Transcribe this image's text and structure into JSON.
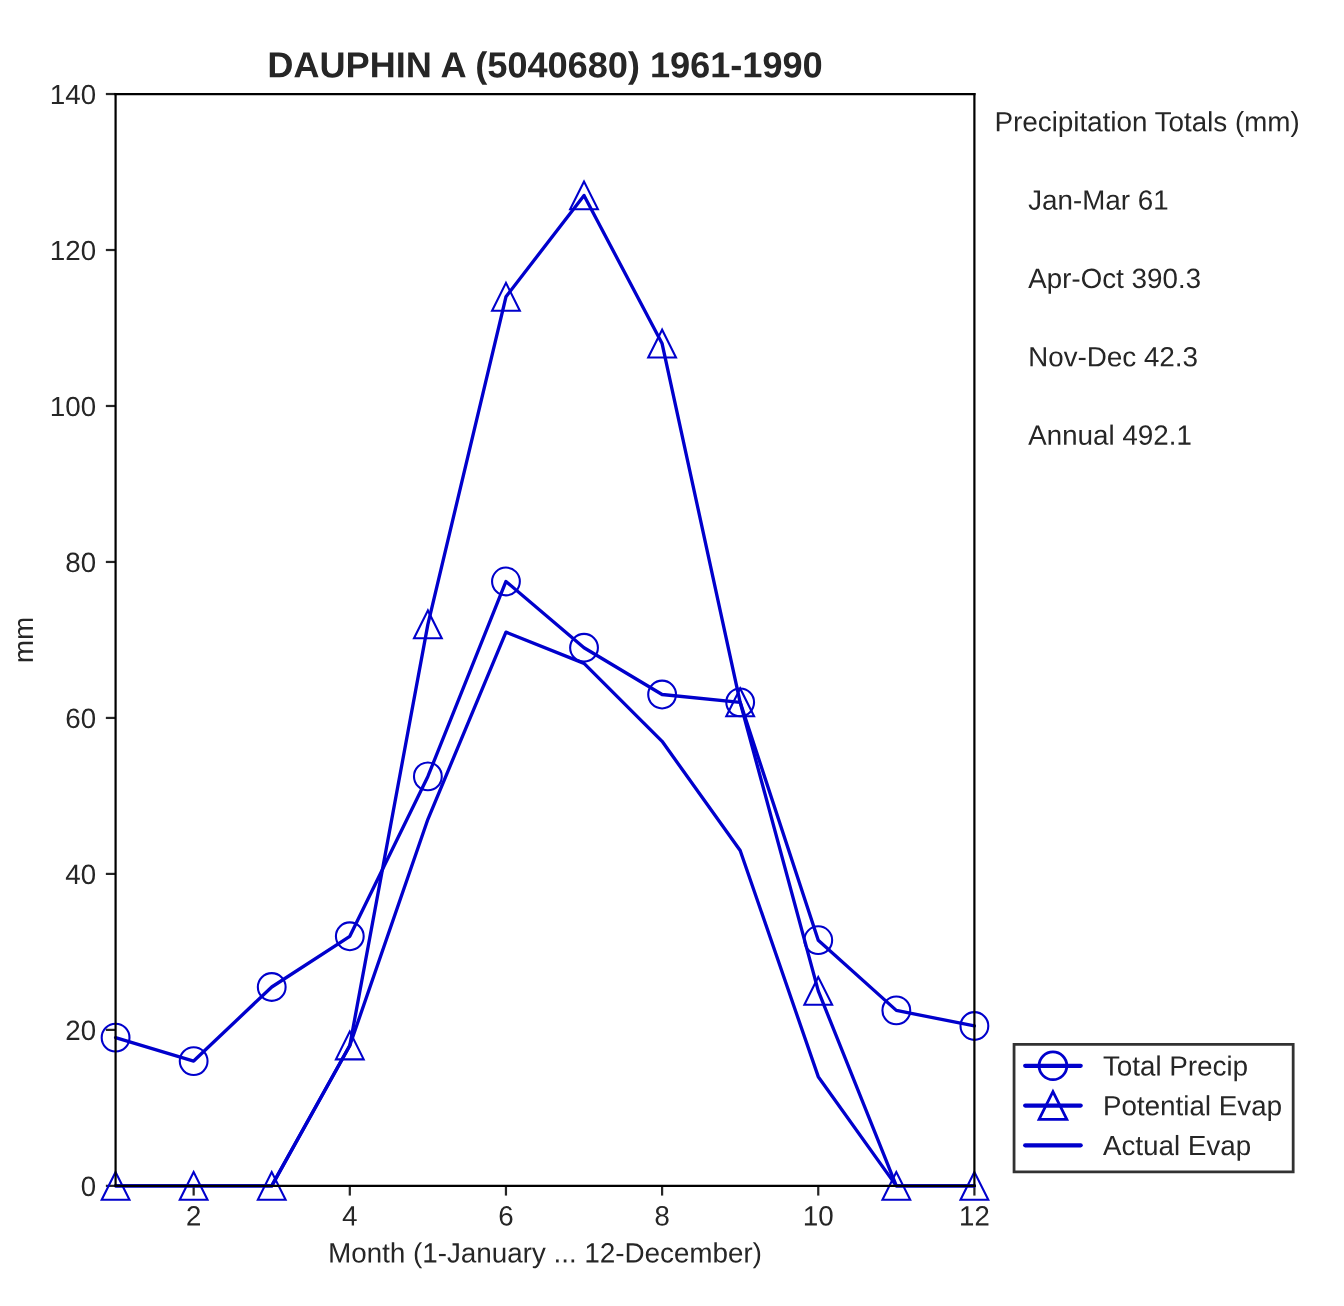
{
  "chart_data": {
    "type": "line",
    "title": "DAUPHIN A (5040680) 1961-1990",
    "xlabel": "Month (1-January ... 12-December)",
    "ylabel": "mm",
    "x": [
      1,
      2,
      3,
      4,
      5,
      6,
      7,
      8,
      9,
      10,
      11,
      12
    ],
    "series": [
      {
        "name": "Total Precip",
        "color": "#0000cc",
        "marker": "circle",
        "values": [
          19,
          16,
          25.5,
          32,
          52.5,
          77.5,
          69,
          63,
          62,
          31.5,
          22.5,
          20.5
        ]
      },
      {
        "name": "Potential Evap",
        "color": "#0000cc",
        "marker": "triangle",
        "values": [
          0,
          0,
          0,
          18,
          72,
          114,
          127,
          108,
          62,
          25,
          0,
          0
        ]
      },
      {
        "name": "Actual Evap",
        "color": "#0000cc",
        "marker": "none",
        "values": [
          0,
          0,
          0,
          18,
          47,
          71,
          67,
          57,
          43,
          14,
          0,
          0
        ]
      }
    ],
    "annotations": [
      "Precipitation Totals (mm)",
      "Jan-Mar 61",
      "Apr-Oct 390.3",
      "Nov-Dec 42.3",
      "Annual 492.1"
    ],
    "xlim": [
      1,
      12
    ],
    "xticks": [
      2,
      4,
      6,
      8,
      10,
      12
    ],
    "ylim": [
      0,
      140
    ],
    "yticks": [
      0,
      20,
      40,
      60,
      80,
      100,
      120,
      140
    ],
    "grid": false,
    "legend": "bottom right",
    "line_style": "solid"
  }
}
